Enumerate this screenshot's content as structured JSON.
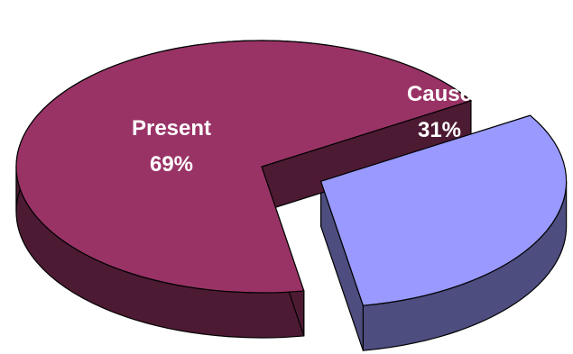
{
  "chart_data": {
    "type": "pie",
    "style": "3d-exploded",
    "slices": [
      {
        "name": "Present",
        "value": 69,
        "percent_label": "69%",
        "color": "#993366",
        "side_color": "#4d1a33"
      },
      {
        "name": "Cause",
        "value": 31,
        "percent_label": "31%",
        "color": "#9999ff",
        "side_color": "#4d4d80",
        "exploded": true
      }
    ]
  }
}
